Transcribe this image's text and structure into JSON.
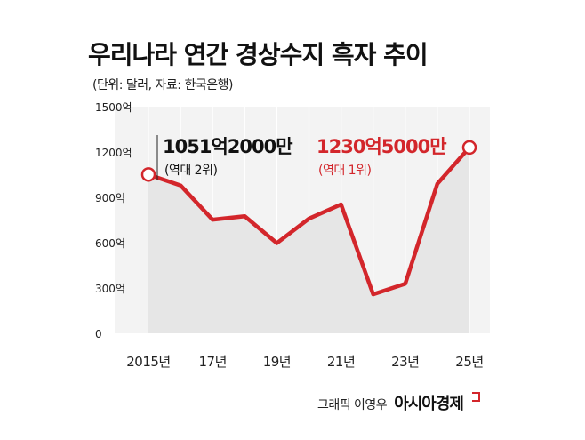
{
  "header": {
    "title": "우리나라 연간 경상수지 흑자 추이",
    "subtitle": "(단위: 달러, 자료: 한국은행)"
  },
  "chart_data": {
    "type": "area",
    "title": "우리나라 연간 경상수지 흑자 추이",
    "subtitle": "(단위: 달러, 자료: 한국은행)",
    "x": [
      2015,
      2016,
      2017,
      2018,
      2019,
      2020,
      2021,
      2022,
      2023,
      2024,
      2025
    ],
    "values": [
      1051,
      979,
      752,
      775,
      597,
      759,
      853,
      258,
      328,
      990,
      1230
    ],
    "ylim": [
      0,
      1500
    ],
    "y_ticks": [
      0,
      300,
      600,
      900,
      1200,
      1500
    ],
    "y_tick_labels": [
      "0",
      "300억",
      "600억",
      "900억",
      "1200억",
      "1500억"
    ],
    "x_tick_values": [
      2015,
      2017,
      2019,
      2021,
      2023,
      2025
    ],
    "x_tick_labels": [
      "2015년",
      "17년",
      "19년",
      "21년",
      "23년",
      "25년"
    ],
    "grid": "vertical",
    "line_color": "#d3262b",
    "area_color": "#e6e6e6",
    "annotations": [
      {
        "x": 2015,
        "value_text": "1051억2000만",
        "rank_text": "(역대 2위)",
        "color": "#111111"
      },
      {
        "x": 2025,
        "value_text": "1230억5000만",
        "rank_text": "(역대 1위)",
        "color": "#d3262b"
      }
    ]
  },
  "credit": {
    "graphic": "그래픽 이영우",
    "brand": "아시아경제"
  }
}
